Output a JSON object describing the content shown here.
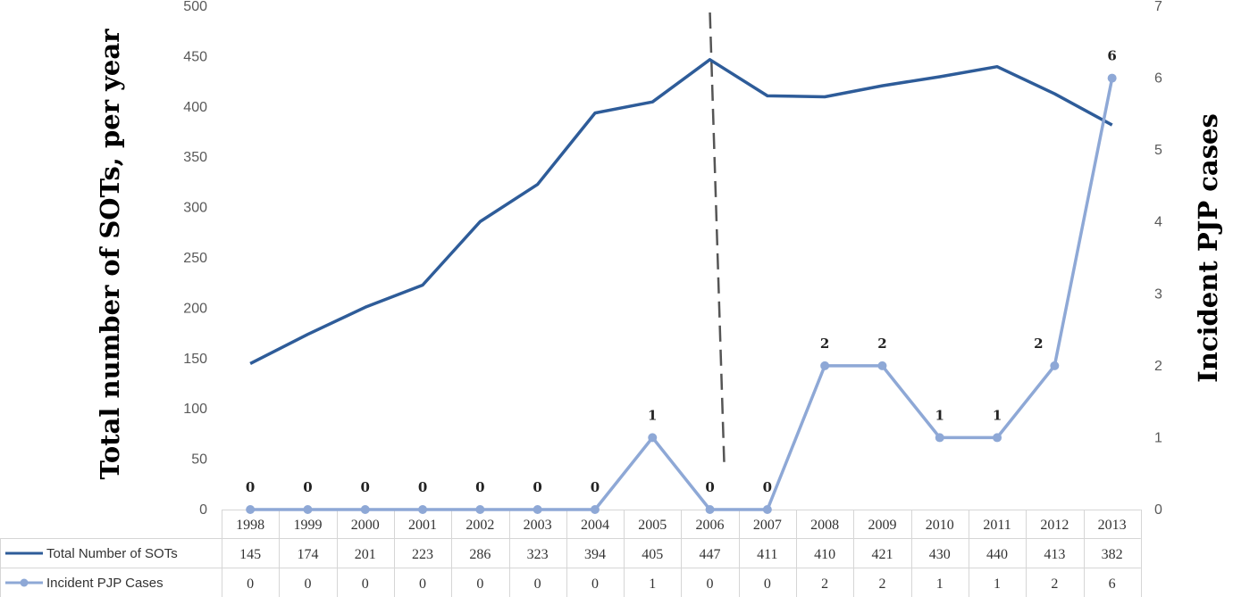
{
  "chart_data": {
    "type": "line",
    "categories": [
      "1998",
      "1999",
      "2000",
      "2001",
      "2002",
      "2003",
      "2004",
      "2005",
      "2006",
      "2007",
      "2008",
      "2009",
      "2010",
      "2011",
      "2012",
      "2013"
    ],
    "series": [
      {
        "name": "Total Number of SOTs",
        "axis": "left",
        "color": "#2E5C99",
        "values": [
          145,
          174,
          201,
          223,
          286,
          323,
          394,
          405,
          447,
          411,
          410,
          421,
          430,
          440,
          413,
          382
        ]
      },
      {
        "name": "Incident PJP Cases",
        "axis": "right",
        "color": "#8EA8D6",
        "markers": true,
        "data_labels": true,
        "values": [
          0,
          0,
          0,
          0,
          0,
          0,
          0,
          1,
          0,
          0,
          2,
          2,
          1,
          1,
          2,
          6
        ]
      }
    ],
    "ylabel": "Total number of SOTs, per year",
    "y2label": "Incident PJP cases",
    "ylim": [
      0,
      500
    ],
    "y2lim": [
      0,
      7
    ],
    "yticks": [
      0,
      50,
      100,
      150,
      200,
      250,
      300,
      350,
      400,
      450,
      500
    ],
    "y2ticks": [
      0,
      1,
      2,
      3,
      4,
      5,
      6,
      7
    ],
    "vertical_marker": "2006",
    "data_table": true,
    "grid": false
  }
}
